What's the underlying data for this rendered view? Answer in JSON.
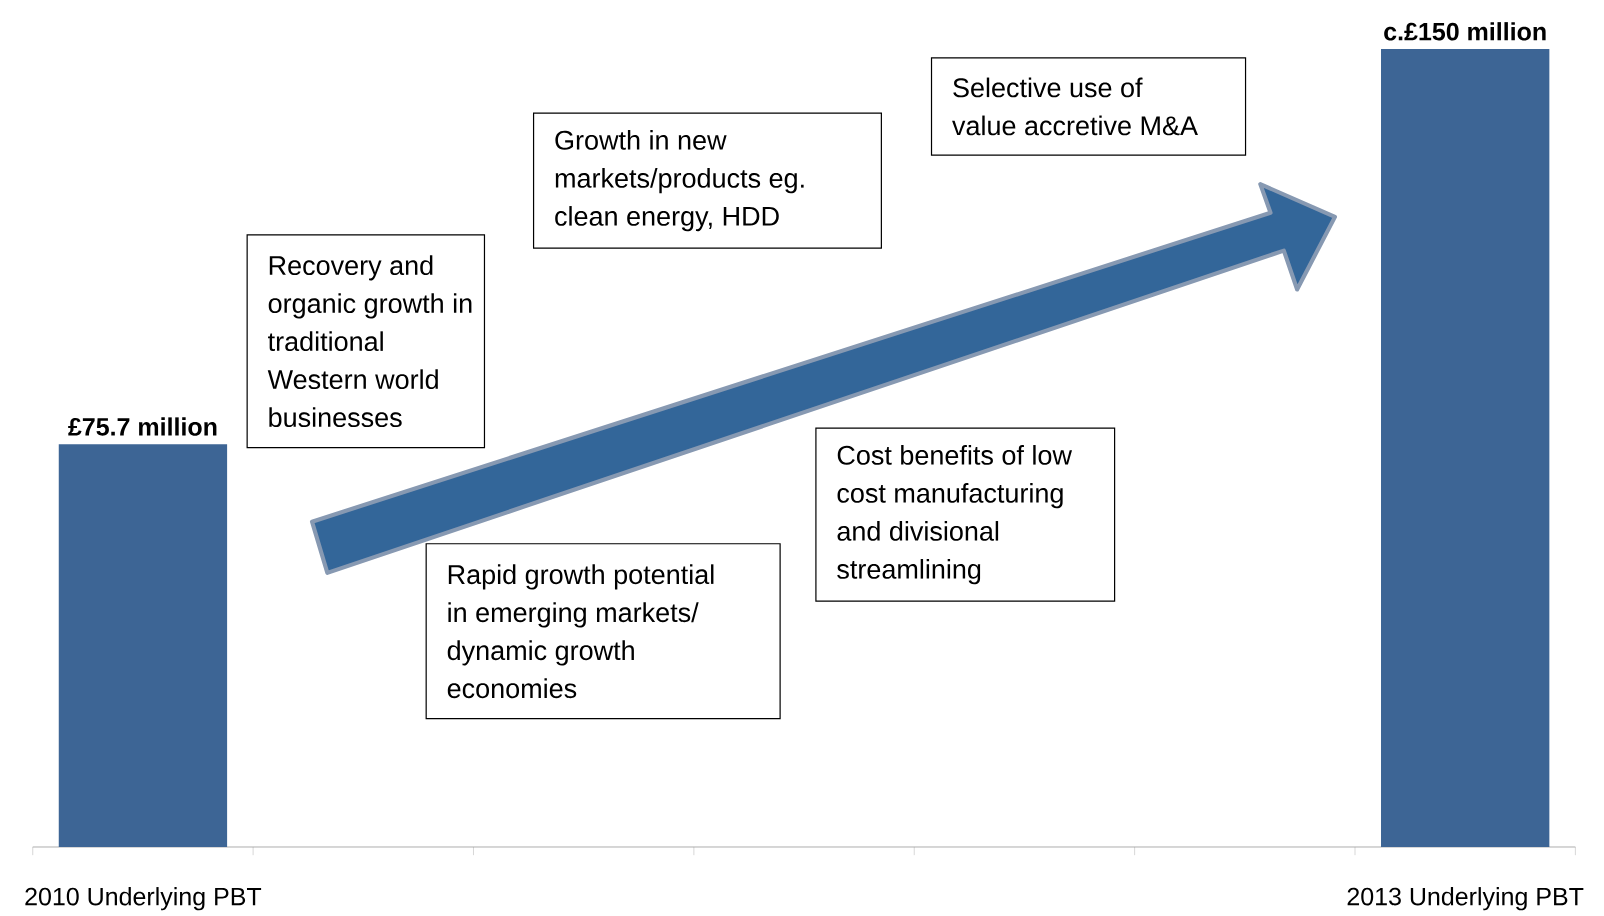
{
  "chart_data": {
    "type": "bar",
    "categories": [
      "2010 Underlying PBT",
      null,
      null,
      null,
      null,
      null,
      "2013 Underlying PBT"
    ],
    "values": [
      75.7,
      null,
      null,
      null,
      null,
      null,
      150
    ],
    "value_labels": [
      "£75.7 million",
      null,
      null,
      null,
      null,
      null,
      "c.£150 million"
    ],
    "color": "#3d6595",
    "annotations": [
      "Recovery and organic growth in traditional Western world businesses",
      "Growth in new markets/products eg. clean energy, HDD",
      "Selective use of value accretive M&A",
      "Cost benefits of low cost manufacturing and divisional streamlining",
      "Rapid growth potential in emerging markets/ dynamic growth economies"
    ]
  }
}
